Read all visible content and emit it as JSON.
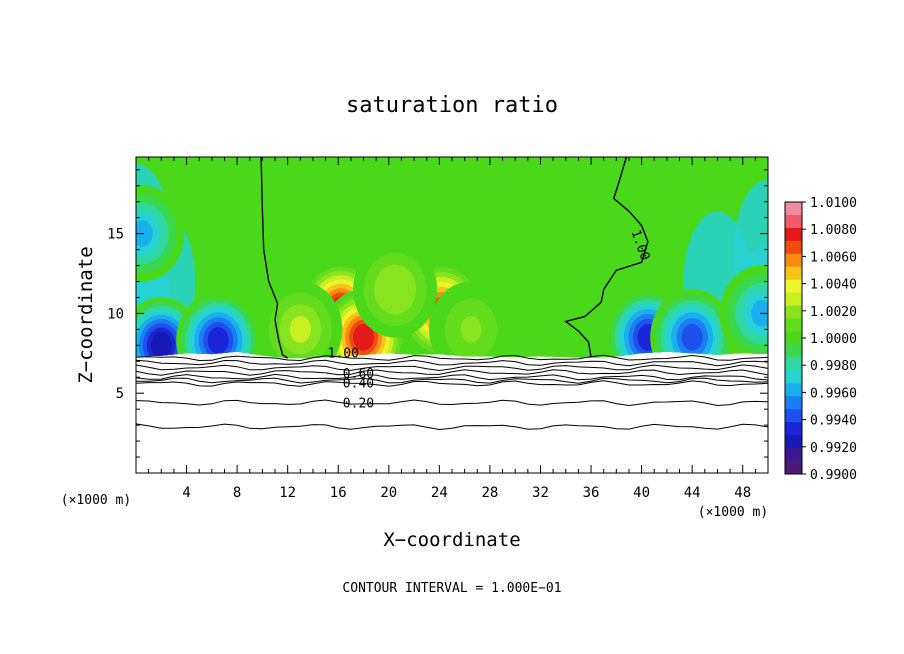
{
  "chart_data": {
    "type": "heatmap",
    "title": "saturation ratio",
    "xlabel": "X−coordinate",
    "ylabel": "Z−coordinate",
    "x_unit": "(×1000 m)",
    "y_unit": "(×1000 m)",
    "xlim": [
      0,
      50
    ],
    "ylim": [
      0,
      19.8
    ],
    "x_ticks": [
      4,
      8,
      12,
      16,
      20,
      24,
      28,
      32,
      36,
      40,
      44,
      48
    ],
    "y_ticks": [
      5,
      10,
      15
    ],
    "colorbar": {
      "range": [
        0.99,
        1.01
      ],
      "tick_labels": [
        "1.0100",
        "1.0080",
        "1.0060",
        "1.0040",
        "1.0020",
        "1.0000",
        "0.9980",
        "0.9960",
        "0.9940",
        "0.9920",
        "0.9900"
      ],
      "colors": [
        "#ed8c9c",
        "#f05a6a",
        "#e41a1a",
        "#f04a10",
        "#f68c14",
        "#f6c41a",
        "#eef52a",
        "#c8ef22",
        "#88e41e",
        "#62dc1c",
        "#4ad81a",
        "#3ad84a",
        "#2fd8a0",
        "#26d2d2",
        "#1ab0ee",
        "#1c7ef0",
        "#1e50ee",
        "#1a24d8",
        "#1a18b4",
        "#3a1a90",
        "#4e1a78"
      ]
    },
    "field_blobs": [
      {
        "x": 16.2,
        "z": 10.2,
        "value": 1.0075
      },
      {
        "x": 24.2,
        "z": 10.2,
        "value": 1.007
      },
      {
        "x": 18.0,
        "z": 8.5,
        "value": 1.008
      },
      {
        "x": 13.0,
        "z": 9.0,
        "value": 1.003
      },
      {
        "x": 20.5,
        "z": 11.5,
        "value": 1.0025
      },
      {
        "x": 26.5,
        "z": 9.0,
        "value": 1.002
      },
      {
        "x": 2.0,
        "z": 8.0,
        "value": 0.9915
      },
      {
        "x": 6.5,
        "z": 8.3,
        "value": 0.9925
      },
      {
        "x": 0.5,
        "z": 15.0,
        "value": 0.996
      },
      {
        "x": 40.5,
        "z": 8.5,
        "value": 0.9925
      },
      {
        "x": 44.0,
        "z": 8.5,
        "value": 0.9935
      },
      {
        "x": 49.5,
        "z": 10.0,
        "value": 0.9955
      }
    ],
    "contours": [
      {
        "level": "1.00",
        "type": "saturation",
        "label": "1.00"
      },
      {
        "level": "0.80",
        "type": "lower"
      },
      {
        "level": "0.60",
        "type": "lower",
        "label": "0.60"
      },
      {
        "level": "0.40",
        "type": "lower",
        "label": "0.40"
      },
      {
        "level": "0.20",
        "type": "lower",
        "label": "0.20"
      }
    ],
    "lower_contour_heights": [
      7.2,
      6.9,
      6.6,
      6.3,
      6.0,
      5.8,
      5.6,
      4.4,
      2.9
    ],
    "annotation": "CONTOUR INTERVAL = 1.000E−01"
  }
}
